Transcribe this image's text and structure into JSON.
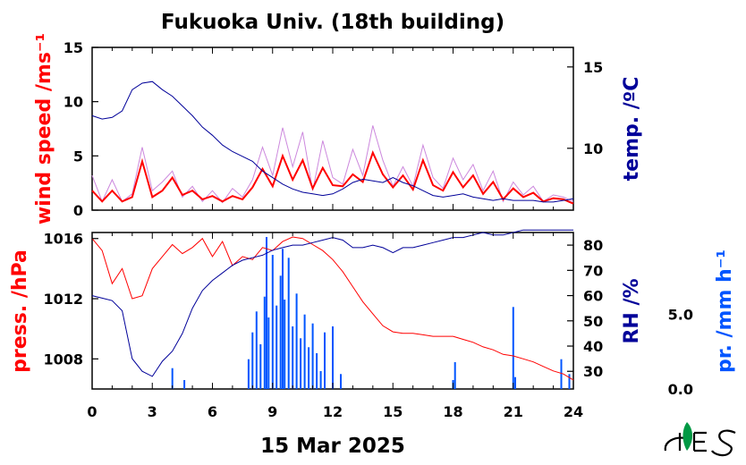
{
  "title": "Fukuoka Univ. (18th building)",
  "date_label": "15 Mar 2025",
  "colors": {
    "wind_fine": "#cc88dd",
    "wind_avg": "#ff0000",
    "temp": "#000099",
    "pressure": "#ff0000",
    "rh": "#000099",
    "precip": "#0055ff",
    "logo": "#009944"
  },
  "logo": "logo-ies-icon",
  "chart_data": [
    {
      "type": "line",
      "name": "wind and temperature",
      "x": [
        0,
        0.5,
        1,
        1.5,
        2,
        2.5,
        3,
        3.5,
        4,
        4.5,
        5,
        5.5,
        6,
        6.5,
        7,
        7.5,
        8,
        8.5,
        9,
        9.5,
        10,
        10.5,
        11,
        11.5,
        12,
        12.5,
        13,
        13.5,
        14,
        14.5,
        15,
        15.5,
        16,
        16.5,
        17,
        17.5,
        18,
        18.5,
        19,
        19.5,
        20,
        20.5,
        21,
        21.5,
        22,
        22.5,
        23,
        23.5,
        24
      ],
      "xlim": [
        0,
        24
      ],
      "xticks": [
        "0",
        "3",
        "6",
        "9",
        "12",
        "15",
        "18",
        "21",
        "24"
      ],
      "left_axis": {
        "label": "wind speed /ms⁻¹",
        "ylim": [
          0,
          15
        ],
        "ticks": [
          "0",
          "5",
          "10",
          "15"
        ]
      },
      "right_axis": {
        "label": "temp. /ºC",
        "ylim": [
          6.2,
          16.2
        ],
        "ticks": [
          "10",
          "15"
        ]
      },
      "series": [
        {
          "role": "wind_fine",
          "axis": "left",
          "values": [
            3.2,
            0.8,
            2.8,
            0.8,
            1.5,
            5.8,
            1.8,
            2.6,
            3.6,
            1.2,
            2.2,
            0.8,
            1.8,
            0.7,
            2.0,
            1.2,
            2.8,
            5.8,
            3.2,
            7.6,
            4.0,
            7.2,
            1.8,
            6.4,
            3.0,
            2.4,
            5.6,
            3.2,
            7.8,
            4.6,
            2.2,
            4.0,
            2.2,
            6.0,
            3.0,
            2.0,
            4.8,
            2.8,
            4.2,
            1.8,
            3.6,
            0.8,
            2.6,
            1.4,
            2.2,
            0.8,
            1.4,
            1.2,
            0.8
          ]
        },
        {
          "role": "wind_avg",
          "axis": "left",
          "values": [
            1.8,
            0.8,
            1.8,
            0.8,
            1.2,
            4.5,
            1.2,
            1.8,
            3.0,
            1.4,
            1.8,
            1.0,
            1.3,
            0.8,
            1.3,
            1.0,
            2.1,
            3.8,
            2.2,
            5.0,
            2.8,
            4.6,
            2.0,
            3.9,
            2.3,
            2.2,
            3.3,
            2.6,
            5.3,
            3.3,
            2.1,
            3.2,
            1.9,
            4.6,
            2.3,
            1.8,
            3.5,
            2.1,
            3.2,
            1.5,
            2.6,
            1.0,
            2.0,
            1.2,
            1.6,
            0.8,
            1.1,
            1.0,
            0.6
          ]
        },
        {
          "role": "temp",
          "axis": "right",
          "values": [
            12.0,
            11.8,
            11.9,
            12.3,
            13.6,
            14.0,
            14.1,
            13.6,
            13.2,
            12.6,
            12.0,
            11.3,
            10.8,
            10.2,
            9.8,
            9.5,
            9.2,
            8.6,
            8.2,
            7.8,
            7.5,
            7.3,
            7.2,
            7.1,
            7.2,
            7.5,
            7.9,
            8.1,
            8.0,
            7.9,
            8.2,
            7.9,
            7.7,
            7.4,
            7.1,
            7.0,
            7.1,
            7.2,
            7.0,
            6.9,
            6.8,
            6.9,
            6.8,
            6.8,
            6.8,
            6.7,
            6.7,
            6.8,
            6.9
          ]
        }
      ]
    },
    {
      "type": "line",
      "name": "pressure, humidity and precipitation",
      "x": [
        0,
        0.5,
        1,
        1.5,
        2,
        2.5,
        3,
        3.5,
        4,
        4.5,
        5,
        5.5,
        6,
        6.5,
        7,
        7.5,
        8,
        8.5,
        9,
        9.5,
        10,
        10.5,
        11,
        11.5,
        12,
        12.5,
        13,
        13.5,
        14,
        14.5,
        15,
        15.5,
        16,
        16.5,
        17,
        17.5,
        18,
        18.5,
        19,
        19.5,
        20,
        20.5,
        21,
        21.5,
        22,
        22.5,
        23,
        23.5,
        24
      ],
      "xlim": [
        0,
        24
      ],
      "xticks": [
        "0",
        "3",
        "6",
        "9",
        "12",
        "15",
        "18",
        "21",
        "24"
      ],
      "left_axis": {
        "label": "press. /hPa",
        "ylim": [
          1006,
          1016.4
        ],
        "ticks": [
          "1008",
          "1012",
          "1016"
        ]
      },
      "right_axis": {
        "label": "RH /%",
        "ylim": [
          23,
          85
        ],
        "ticks": [
          "30",
          "40",
          "50",
          "60",
          "70",
          "80"
        ]
      },
      "precip_axis": {
        "label": "pr. /mm h⁻¹",
        "ylim": [
          0,
          10.5
        ],
        "ticks": [
          "0.0",
          "5.0"
        ]
      },
      "series": [
        {
          "role": "pressure",
          "axis": "left",
          "values": [
            1016.0,
            1015.2,
            1013.0,
            1014.0,
            1012.0,
            1012.2,
            1014.0,
            1014.8,
            1015.6,
            1015.0,
            1015.4,
            1016.0,
            1014.8,
            1015.8,
            1014.2,
            1014.8,
            1014.6,
            1015.4,
            1015.2,
            1015.8,
            1016.1,
            1016.0,
            1015.6,
            1015.2,
            1014.6,
            1013.8,
            1012.8,
            1011.8,
            1011.0,
            1010.2,
            1009.8,
            1009.7,
            1009.7,
            1009.6,
            1009.5,
            1009.5,
            1009.5,
            1009.3,
            1009.1,
            1008.8,
            1008.6,
            1008.3,
            1008.2,
            1008.0,
            1007.8,
            1007.5,
            1007.2,
            1007.0,
            1006.6
          ]
        },
        {
          "role": "rh",
          "axis": "right",
          "values": [
            60,
            59,
            58,
            54,
            35,
            30,
            28,
            34,
            38,
            45,
            55,
            62,
            66,
            69,
            72,
            74,
            75,
            76,
            78,
            79,
            80,
            80,
            81,
            82,
            83,
            82,
            79,
            79,
            80,
            79,
            77,
            79,
            79,
            80,
            81,
            82,
            83,
            83,
            84,
            85,
            84,
            84,
            85,
            86,
            86,
            86,
            86,
            86,
            86
          ]
        }
      ],
      "precip_bars": {
        "x": [
          4.0,
          4.6,
          7.8,
          8.0,
          8.2,
          8.4,
          8.6,
          8.7,
          8.8,
          9.0,
          9.2,
          9.4,
          9.5,
          9.6,
          9.8,
          10.0,
          10.2,
          10.4,
          10.6,
          10.8,
          11.0,
          11.2,
          11.4,
          11.6,
          12.0,
          12.4,
          18.0,
          18.1,
          21.0,
          21.1,
          23.4,
          23.8
        ],
        "values": [
          1.4,
          0.6,
          2.0,
          3.8,
          5.2,
          3.0,
          6.2,
          10.2,
          4.8,
          9.0,
          5.6,
          7.6,
          9.4,
          6.0,
          8.8,
          4.2,
          6.4,
          3.4,
          5.0,
          2.8,
          4.4,
          2.4,
          1.2,
          3.8,
          4.2,
          1.0,
          0.6,
          1.8,
          5.5,
          0.8,
          2.0,
          1.0
        ]
      }
    }
  ]
}
